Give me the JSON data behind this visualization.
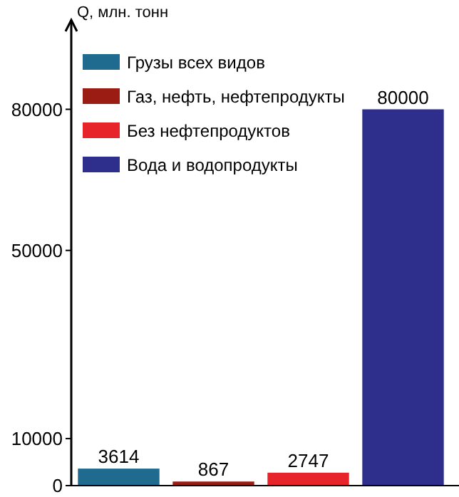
{
  "chart_data": {
    "type": "bar",
    "ylabel": "Q, млн. тонн",
    "categories": [
      null,
      null,
      null,
      null
    ],
    "series": [
      {
        "name": "Грузы всех видов",
        "color": "#1f6a8f",
        "values": [
          3614,
          null,
          null,
          null
        ]
      },
      {
        "name": "Газ, нефть, нефтепродукты",
        "color": "#9b1c12",
        "values": [
          null,
          867,
          null,
          null
        ]
      },
      {
        "name": "Без нефтепродуктов",
        "color": "#e8242b",
        "values": [
          null,
          null,
          2747,
          null
        ]
      },
      {
        "name": "Вода и водопродукты",
        "color": "#2e2f8c",
        "values": [
          null,
          null,
          null,
          80000
        ]
      }
    ],
    "ylim": [
      0,
      99000
    ],
    "yticks": [
      0,
      10000,
      50000,
      80000
    ],
    "data_labels": true,
    "legend": "top left"
  }
}
